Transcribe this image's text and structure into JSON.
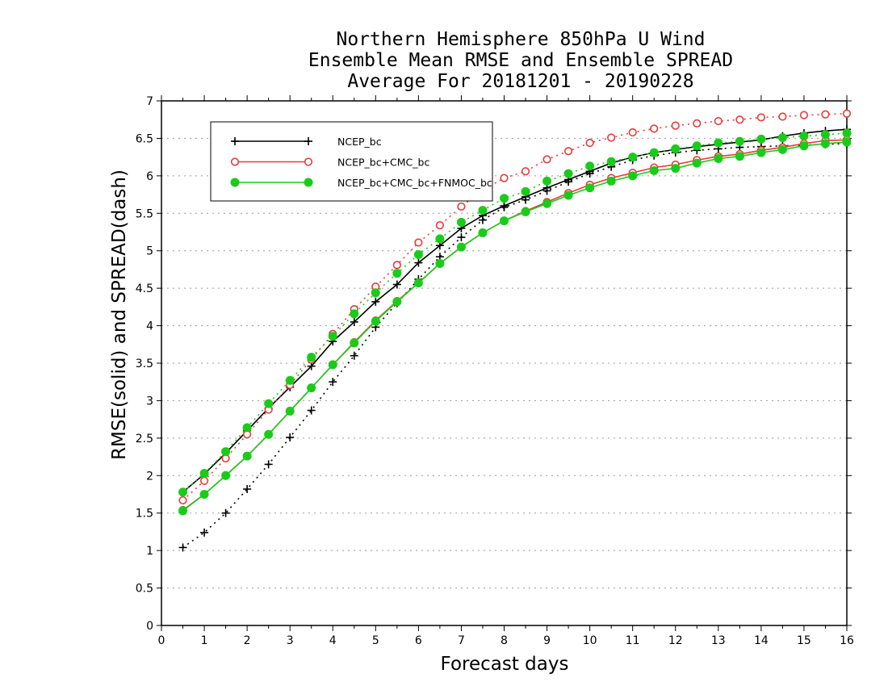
{
  "chart_data": {
    "type": "line",
    "title": [
      "Northern Hemisphere 850hPa U Wind",
      "Ensemble Mean RMSE and Ensemble SPREAD",
      "Average For 20181201 - 20190228"
    ],
    "xlabel": "Forecast days",
    "ylabel": "RMSE(solid) and SPREAD(dash)",
    "xlim": [
      0,
      16
    ],
    "ylim": [
      0,
      7
    ],
    "xticks": [
      0,
      1,
      2,
      3,
      4,
      5,
      6,
      7,
      8,
      9,
      10,
      11,
      12,
      13,
      14,
      15,
      16
    ],
    "yticks": [
      0,
      0.5,
      1,
      1.5,
      2,
      2.5,
      3,
      3.5,
      4,
      4.5,
      5,
      5.5,
      6,
      6.5,
      7
    ],
    "grid": "horizontal dotted",
    "legend_position": "top-left",
    "x": [
      0.5,
      1,
      1.5,
      2,
      2.5,
      3,
      3.5,
      4,
      4.5,
      5,
      5.5,
      6,
      6.5,
      7,
      7.5,
      8,
      8.5,
      9,
      9.5,
      10,
      10.5,
      11,
      11.5,
      12,
      12.5,
      13,
      13.5,
      14,
      14.5,
      15,
      15.5,
      16
    ],
    "series": [
      {
        "name": "NCEP_bc",
        "color": "#000000",
        "marker": "plus",
        "metric": "RMSE",
        "dash": false,
        "values": [
          1.78,
          2.02,
          2.3,
          2.6,
          2.9,
          3.18,
          3.46,
          3.79,
          4.05,
          4.32,
          4.55,
          4.84,
          5.07,
          5.3,
          5.47,
          5.6,
          5.72,
          5.84,
          5.95,
          6.06,
          6.17,
          6.25,
          6.31,
          6.35,
          6.39,
          6.42,
          6.45,
          6.48,
          6.53,
          6.57,
          6.6,
          6.62
        ]
      },
      {
        "name": "NCEP_bc",
        "color": "#000000",
        "marker": "plus",
        "metric": "SPREAD",
        "dash": true,
        "values": [
          1.04,
          1.24,
          1.5,
          1.82,
          2.15,
          2.51,
          2.87,
          3.25,
          3.6,
          3.98,
          4.3,
          4.62,
          4.92,
          5.18,
          5.41,
          5.58,
          5.68,
          5.8,
          5.92,
          6.03,
          6.12,
          6.21,
          6.27,
          6.31,
          6.34,
          6.36,
          6.38,
          6.39,
          6.4,
          6.41,
          6.42,
          6.43
        ]
      },
      {
        "name": "NCEP_bc+CMC_bc",
        "color": "#e83a3a",
        "marker": "open-circle",
        "metric": "RMSE",
        "dash": false,
        "values": [
          1.54,
          1.75,
          2.0,
          2.26,
          2.55,
          2.86,
          3.17,
          3.48,
          3.78,
          4.07,
          4.33,
          4.57,
          4.83,
          5.05,
          5.24,
          5.4,
          5.53,
          5.65,
          5.77,
          5.88,
          5.97,
          6.04,
          6.11,
          6.15,
          6.21,
          6.26,
          6.29,
          6.34,
          6.38,
          6.43,
          6.47,
          6.48
        ]
      },
      {
        "name": "NCEP_bc+CMC_bc",
        "color": "#e83a3a",
        "marker": "open-circle",
        "metric": "SPREAD",
        "dash": true,
        "values": [
          1.67,
          1.93,
          2.23,
          2.55,
          2.88,
          3.21,
          3.55,
          3.89,
          4.22,
          4.52,
          4.81,
          5.11,
          5.34,
          5.59,
          5.81,
          5.97,
          6.06,
          6.22,
          6.33,
          6.44,
          6.51,
          6.58,
          6.63,
          6.67,
          6.7,
          6.73,
          6.75,
          6.78,
          6.79,
          6.81,
          6.82,
          6.83
        ]
      },
      {
        "name": "NCEP_bc+CMC_bc+FNMOC_bc",
        "color": "#19cc19",
        "marker": "filled-circle",
        "metric": "RMSE",
        "dash": false,
        "values": [
          1.53,
          1.75,
          2.0,
          2.26,
          2.55,
          2.86,
          3.17,
          3.48,
          3.77,
          4.06,
          4.32,
          4.57,
          4.83,
          5.05,
          5.24,
          5.4,
          5.52,
          5.63,
          5.74,
          5.84,
          5.93,
          6.0,
          6.07,
          6.1,
          6.17,
          6.23,
          6.26,
          6.31,
          6.35,
          6.4,
          6.43,
          6.45
        ]
      },
      {
        "name": "NCEP_bc+CMC_bc+FNMOC_bc",
        "color": "#19cc19",
        "marker": "filled-circle",
        "metric": "SPREAD",
        "dash": true,
        "values": [
          1.78,
          2.03,
          2.32,
          2.64,
          2.96,
          3.27,
          3.58,
          3.86,
          4.16,
          4.44,
          4.7,
          4.95,
          5.16,
          5.38,
          5.54,
          5.7,
          5.79,
          5.93,
          6.03,
          6.13,
          6.19,
          6.25,
          6.31,
          6.36,
          6.4,
          6.44,
          6.46,
          6.49,
          6.51,
          6.53,
          6.55,
          6.57
        ]
      }
    ]
  }
}
